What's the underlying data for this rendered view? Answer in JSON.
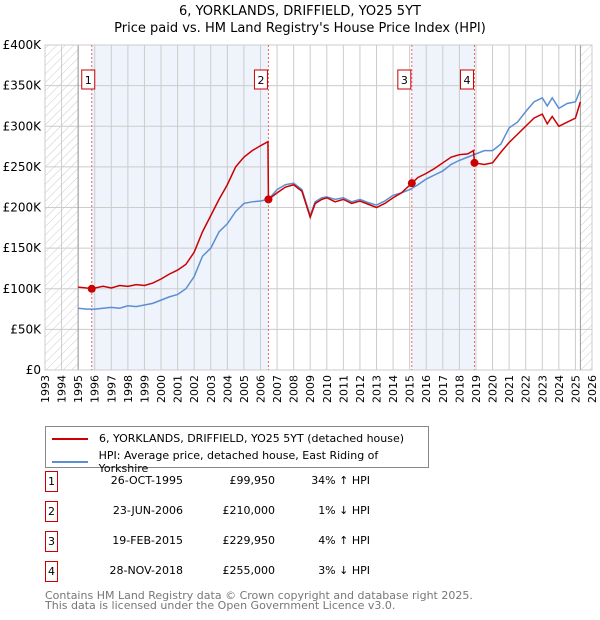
{
  "title_line1": "6, YORKLANDS, DRIFFIELD, YO25 5YT",
  "title_line2": "Price paid vs. HM Land Registry's House Price Index (HPI)",
  "chart_data": {
    "type": "line",
    "xlim": [
      1993,
      2026
    ],
    "ylim": [
      0,
      400000
    ],
    "x_ticks": [
      "1993",
      "1994",
      "1995",
      "1996",
      "1997",
      "1998",
      "1999",
      "2000",
      "2001",
      "2002",
      "2003",
      "2004",
      "2005",
      "2006",
      "2007",
      "2008",
      "2009",
      "2010",
      "2011",
      "2012",
      "2013",
      "2014",
      "2015",
      "2016",
      "2017",
      "2018",
      "2019",
      "2020",
      "2021",
      "2022",
      "2023",
      "2024",
      "2025",
      "2026"
    ],
    "y_ticks": [
      {
        "v": 0,
        "label": "£0"
      },
      {
        "v": 50000,
        "label": "£50K"
      },
      {
        "v": 100000,
        "label": "£100K"
      },
      {
        "v": 150000,
        "label": "£150K"
      },
      {
        "v": 200000,
        "label": "£200K"
      },
      {
        "v": 250000,
        "label": "£250K"
      },
      {
        "v": 300000,
        "label": "£300K"
      },
      {
        "v": 350000,
        "label": "£350K"
      },
      {
        "v": 400000,
        "label": "£400K"
      }
    ],
    "hatched_ranges": [
      [
        1993,
        1995
      ],
      [
        2025.3,
        2026
      ]
    ],
    "shaded_ranges": [
      [
        1995.82,
        2006.48
      ],
      [
        2015.13,
        2018.91
      ]
    ],
    "series": [
      {
        "name": "6, YORKLANDS, DRIFFIELD, YO25 5YT (detached house)",
        "color": "#cc0000",
        "x": [
          1995,
          1995.5,
          1995.82,
          1996.5,
          1997,
          1997.5,
          1998,
          1998.5,
          1999,
          1999.5,
          2000,
          2000.5,
          2001,
          2001.5,
          2002,
          2002.5,
          2003,
          2003.5,
          2004,
          2004.5,
          2005,
          2005.5,
          2006,
          2006.45,
          2006.48,
          2007,
          2007.5,
          2008,
          2008.5,
          2009,
          2009.3,
          2009.7,
          2010,
          2010.5,
          2011,
          2011.5,
          2012,
          2012.5,
          2013,
          2013.5,
          2014,
          2014.5,
          2015.13,
          2015.5,
          2016,
          2016.5,
          2017,
          2017.5,
          2018,
          2018.5,
          2018.85,
          2018.91,
          2019.5,
          2020,
          2020.5,
          2021,
          2021.5,
          2022,
          2022.5,
          2023,
          2023.3,
          2023.6,
          2024,
          2024.5,
          2025,
          2025.3
        ],
        "y": [
          102000,
          101000,
          99950,
          103000,
          101000,
          104000,
          103000,
          105000,
          104000,
          107000,
          112000,
          118000,
          123000,
          130000,
          145000,
          170000,
          190000,
          210000,
          228000,
          250000,
          262000,
          270000,
          276000,
          281000,
          210000,
          218000,
          225000,
          228000,
          220000,
          188000,
          205000,
          210000,
          212000,
          207000,
          210000,
          205000,
          208000,
          204000,
          200000,
          205000,
          212000,
          218000,
          229950,
          237000,
          242000,
          248000,
          255000,
          262000,
          265000,
          266000,
          270000,
          255000,
          253000,
          255000,
          268000,
          280000,
          290000,
          300000,
          310000,
          315000,
          303000,
          312000,
          300000,
          305000,
          310000,
          330000
        ]
      },
      {
        "name": "HPI: Average price, detached house, East Riding of Yorkshire",
        "color": "#5b8fd4",
        "x": [
          1995,
          1995.5,
          1996,
          1996.5,
          1997,
          1997.5,
          1998,
          1998.5,
          1999,
          1999.5,
          2000,
          2000.5,
          2001,
          2001.5,
          2002,
          2002.5,
          2003,
          2003.5,
          2004,
          2004.5,
          2005,
          2005.5,
          2006,
          2006.48,
          2007,
          2007.5,
          2008,
          2008.5,
          2009,
          2009.3,
          2009.7,
          2010,
          2010.5,
          2011,
          2011.5,
          2012,
          2012.5,
          2013,
          2013.5,
          2014,
          2014.5,
          2015,
          2015.5,
          2016,
          2016.5,
          2017,
          2017.5,
          2018,
          2018.5,
          2019,
          2019.5,
          2020,
          2020.5,
          2021,
          2021.5,
          2022,
          2022.5,
          2023,
          2023.3,
          2023.6,
          2024,
          2024.5,
          2025,
          2025.3
        ],
        "y": [
          76000,
          75000,
          75000,
          76000,
          77000,
          76000,
          79000,
          78000,
          80000,
          82000,
          86000,
          90000,
          93000,
          100000,
          115000,
          140000,
          150000,
          170000,
          180000,
          195000,
          205000,
          207000,
          208000,
          210000,
          222000,
          228000,
          230000,
          222000,
          190000,
          207000,
          212000,
          213000,
          210000,
          212000,
          207000,
          210000,
          206000,
          203000,
          208000,
          215000,
          218000,
          222000,
          228000,
          235000,
          240000,
          245000,
          253000,
          258000,
          262000,
          266000,
          270000,
          270000,
          278000,
          298000,
          305000,
          318000,
          330000,
          335000,
          325000,
          335000,
          322000,
          328000,
          330000,
          345000
        ]
      }
    ],
    "sales": [
      {
        "num": "1",
        "date": "26-OCT-1995",
        "price": "£99,950",
        "hpi": "34% ↑ HPI",
        "x": 1995.82,
        "y": 99950
      },
      {
        "num": "2",
        "date": "23-JUN-2006",
        "price": "£210,000",
        "hpi": "1% ↓ HPI",
        "x": 2006.48,
        "y": 210000
      },
      {
        "num": "3",
        "date": "19-FEB-2015",
        "price": "£229,950",
        "hpi": "4% ↑ HPI",
        "x": 2015.13,
        "y": 229950
      },
      {
        "num": "4",
        "date": "28-NOV-2018",
        "price": "£255,000",
        "hpi": "3% ↓ HPI",
        "x": 2018.91,
        "y": 255000
      }
    ]
  },
  "footer_line1": "Contains HM Land Registry data © Crown copyright and database right 2025.",
  "footer_line2": "This data is licensed under the Open Government Licence v3.0."
}
